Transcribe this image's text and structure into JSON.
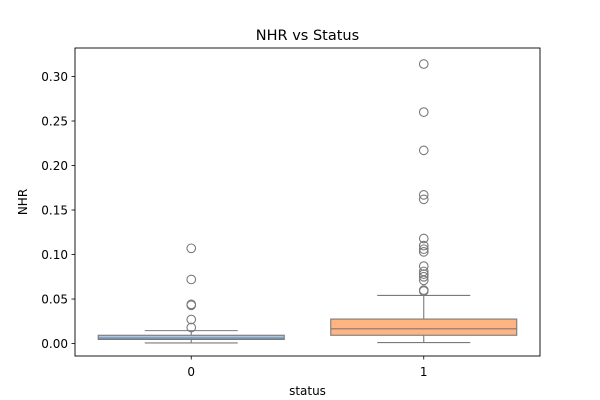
{
  "chart_data": {
    "type": "box",
    "title": "NHR vs Status",
    "xlabel": "status",
    "ylabel": "NHR",
    "categories": [
      "0",
      "1"
    ],
    "ylim": [
      -0.014,
      0.332
    ],
    "yticks": [
      0.0,
      0.05,
      0.1,
      0.15,
      0.2,
      0.25,
      0.3
    ],
    "ytick_labels": [
      "0.00",
      "0.05",
      "0.10",
      "0.15",
      "0.20",
      "0.25",
      "0.30"
    ],
    "grid": false,
    "boxes": [
      {
        "category": "0",
        "color": "#a1c9f4",
        "whisker_low": 0.0007,
        "q1": 0.0046,
        "median": 0.0061,
        "q3": 0.0093,
        "whisker_high": 0.0145,
        "outliers": [
          0.107,
          0.072,
          0.044,
          0.043,
          0.027,
          0.018
        ]
      },
      {
        "category": "1",
        "color": "#ffb482",
        "whisker_low": 0.0011,
        "q1": 0.0093,
        "median": 0.0165,
        "q3": 0.0275,
        "whisker_high": 0.054,
        "outliers": [
          0.314,
          0.26,
          0.217,
          0.167,
          0.162,
          0.118,
          0.11,
          0.106,
          0.103,
          0.087,
          0.081,
          0.078,
          0.075,
          0.071,
          0.06,
          0.059
        ]
      }
    ],
    "line_color": "#7a7a7a"
  }
}
